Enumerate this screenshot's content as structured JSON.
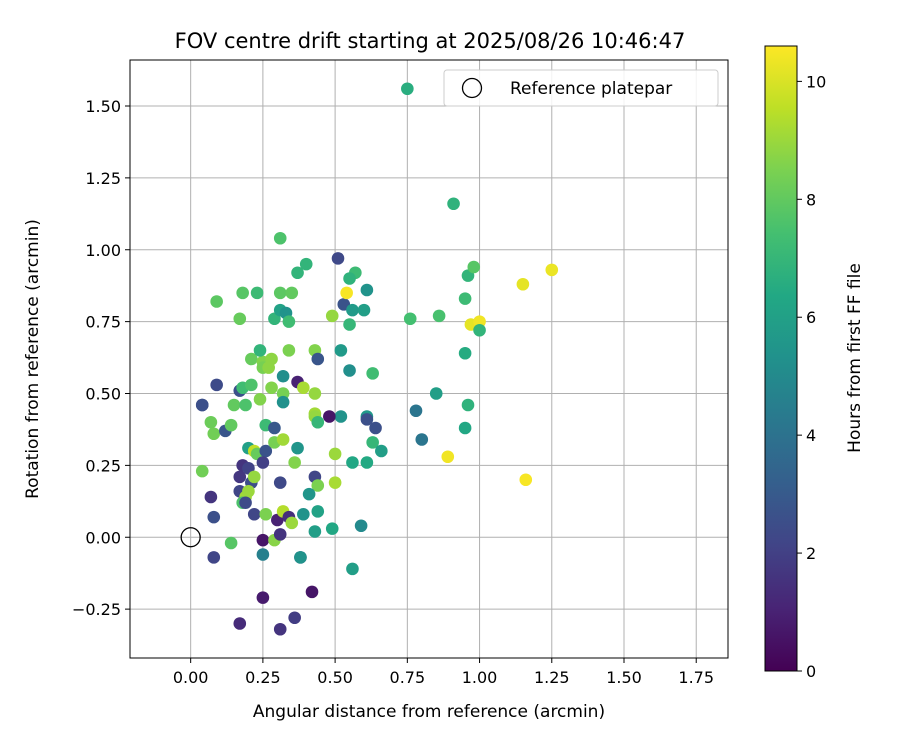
{
  "chart_data": {
    "type": "scatter",
    "title": "FOV centre drift starting at 2025/08/26 10:46:47",
    "xlabel": "Angular distance from reference (arcmin)",
    "ylabel": "Rotation from reference (arcmin)",
    "xlim": [
      -0.21,
      1.86
    ],
    "ylim": [
      -0.42,
      1.66
    ],
    "xticks": [
      0.0,
      0.25,
      0.5,
      0.75,
      1.0,
      1.25,
      1.5,
      1.75
    ],
    "xtick_labels": [
      "0.00",
      "0.25",
      "0.50",
      "0.75",
      "1.00",
      "1.25",
      "1.50",
      "1.75"
    ],
    "yticks": [
      -0.25,
      0.0,
      0.25,
      0.5,
      0.75,
      1.0,
      1.25,
      1.5
    ],
    "ytick_labels": [
      "−0.25",
      "0.00",
      "0.25",
      "0.50",
      "0.75",
      "1.00",
      "1.25",
      "1.50"
    ],
    "grid": true,
    "legend": {
      "position": "top-right",
      "label": "Reference platepar"
    },
    "reference_point": {
      "x": 0.0,
      "y": 0.0
    },
    "colorbar": {
      "label": "Hours from first FF file",
      "colormap": "viridis",
      "range": [
        0,
        10.6
      ],
      "ticks": [
        0,
        2,
        4,
        6,
        8,
        10
      ],
      "tick_labels": [
        "0",
        "2",
        "4",
        "6",
        "8",
        "10"
      ]
    },
    "points": [
      [
        0.75,
        1.56,
        6.6
      ],
      [
        0.91,
        1.16,
        6.8
      ],
      [
        0.31,
        1.04,
        7.6
      ],
      [
        0.4,
        0.95,
        6.9
      ],
      [
        0.37,
        0.92,
        6.9
      ],
      [
        0.57,
        0.92,
        7.2
      ],
      [
        0.55,
        0.9,
        6.8
      ],
      [
        0.96,
        0.91,
        6.9
      ],
      [
        0.98,
        0.94,
        7.8
      ],
      [
        1.25,
        0.93,
        10.3
      ],
      [
        0.51,
        0.97,
        2.3
      ],
      [
        0.53,
        0.81,
        2.7
      ],
      [
        0.56,
        0.79,
        5.7
      ],
      [
        0.6,
        0.79,
        5.9
      ],
      [
        0.61,
        0.86,
        5.4
      ],
      [
        0.54,
        0.85,
        10.5
      ],
      [
        1.15,
        0.88,
        10.2
      ],
      [
        0.09,
        0.82,
        7.9
      ],
      [
        0.18,
        0.85,
        7.8
      ],
      [
        0.23,
        0.85,
        7.2
      ],
      [
        0.31,
        0.85,
        7.9
      ],
      [
        0.35,
        0.85,
        8.0
      ],
      [
        0.17,
        0.76,
        8.1
      ],
      [
        0.29,
        0.76,
        6.9
      ],
      [
        0.31,
        0.79,
        6.1
      ],
      [
        0.33,
        0.78,
        5.4
      ],
      [
        0.34,
        0.75,
        7.3
      ],
      [
        0.49,
        0.77,
        8.9
      ],
      [
        0.55,
        0.74,
        7.0
      ],
      [
        0.76,
        0.76,
        7.4
      ],
      [
        0.86,
        0.77,
        7.5
      ],
      [
        0.95,
        0.83,
        7.2
      ],
      [
        0.97,
        0.74,
        10.2
      ],
      [
        1.0,
        0.75,
        10.4
      ],
      [
        1.0,
        0.72,
        6.9
      ],
      [
        0.21,
        0.62,
        8.1
      ],
      [
        0.25,
        0.61,
        8.6
      ],
      [
        0.28,
        0.62,
        8.8
      ],
      [
        0.24,
        0.65,
        6.9
      ],
      [
        0.34,
        0.65,
        8.5
      ],
      [
        0.43,
        0.65,
        8.6
      ],
      [
        0.44,
        0.62,
        2.8
      ],
      [
        0.52,
        0.65,
        5.7
      ],
      [
        0.63,
        0.57,
        7.3
      ],
      [
        0.55,
        0.58,
        5.2
      ],
      [
        0.95,
        0.64,
        6.5
      ],
      [
        0.09,
        0.53,
        2.4
      ],
      [
        0.17,
        0.51,
        2.6
      ],
      [
        0.18,
        0.52,
        7.3
      ],
      [
        0.21,
        0.53,
        7.6
      ],
      [
        0.25,
        0.59,
        8.4
      ],
      [
        0.27,
        0.59,
        8.8
      ],
      [
        0.28,
        0.52,
        8.6
      ],
      [
        0.32,
        0.56,
        5.2
      ],
      [
        0.32,
        0.5,
        8.4
      ],
      [
        0.37,
        0.54,
        1.0
      ],
      [
        0.39,
        0.52,
        9.2
      ],
      [
        0.43,
        0.5,
        8.9
      ],
      [
        0.04,
        0.46,
        2.3
      ],
      [
        0.04,
        0.46,
        2.6
      ],
      [
        0.15,
        0.46,
        8.0
      ],
      [
        0.19,
        0.46,
        7.6
      ],
      [
        0.24,
        0.48,
        8.6
      ],
      [
        0.32,
        0.47,
        5.3
      ],
      [
        0.52,
        0.42,
        5.4
      ],
      [
        0.43,
        0.43,
        9.1
      ],
      [
        0.43,
        0.42,
        8.9
      ],
      [
        0.48,
        0.42,
        0.6
      ],
      [
        0.61,
        0.42,
        5.6
      ],
      [
        0.61,
        0.41,
        2.6
      ],
      [
        0.44,
        0.4,
        7.0
      ],
      [
        0.78,
        0.44,
        4.1
      ],
      [
        0.85,
        0.5,
        5.9
      ],
      [
        0.96,
        0.46,
        6.8
      ],
      [
        0.07,
        0.4,
        8.2
      ],
      [
        0.08,
        0.36,
        8.3
      ],
      [
        0.12,
        0.37,
        2.8
      ],
      [
        0.14,
        0.39,
        8.0
      ],
      [
        0.2,
        0.31,
        6.0
      ],
      [
        0.22,
        0.3,
        9.6
      ],
      [
        0.23,
        0.29,
        8.1
      ],
      [
        0.26,
        0.39,
        7.2
      ],
      [
        0.26,
        0.3,
        2.7
      ],
      [
        0.29,
        0.38,
        2.9
      ],
      [
        0.29,
        0.33,
        8.4
      ],
      [
        0.32,
        0.34,
        9.1
      ],
      [
        0.37,
        0.31,
        5.5
      ],
      [
        0.64,
        0.38,
        2.6
      ],
      [
        0.63,
        0.33,
        7.0
      ],
      [
        0.66,
        0.3,
        5.9
      ],
      [
        0.8,
        0.34,
        4.1
      ],
      [
        0.89,
        0.28,
        10.4
      ],
      [
        0.95,
        0.38,
        6.3
      ],
      [
        0.5,
        0.29,
        9.0
      ],
      [
        0.04,
        0.23,
        8.3
      ],
      [
        0.17,
        0.21,
        1.7
      ],
      [
        0.18,
        0.25,
        1.6
      ],
      [
        0.2,
        0.24,
        2.1
      ],
      [
        0.21,
        0.19,
        2.5
      ],
      [
        0.22,
        0.21,
        8.9
      ],
      [
        0.25,
        0.26,
        2.0
      ],
      [
        0.31,
        0.19,
        2.3
      ],
      [
        0.36,
        0.26,
        8.6
      ],
      [
        0.43,
        0.21,
        2.2
      ],
      [
        0.44,
        0.18,
        8.5
      ],
      [
        0.41,
        0.15,
        5.5
      ],
      [
        0.56,
        0.26,
        6.3
      ],
      [
        0.61,
        0.26,
        6.4
      ],
      [
        1.16,
        0.2,
        10.5
      ],
      [
        0.5,
        0.19,
        9.2
      ],
      [
        0.07,
        0.14,
        1.6
      ],
      [
        0.17,
        0.16,
        2.2
      ],
      [
        0.19,
        0.14,
        9.1
      ],
      [
        0.2,
        0.16,
        9.0
      ],
      [
        0.18,
        0.12,
        7.6
      ],
      [
        0.19,
        0.12,
        2.4
      ],
      [
        0.22,
        0.08,
        2.2
      ],
      [
        0.26,
        0.08,
        8.5
      ],
      [
        0.3,
        0.06,
        1.0
      ],
      [
        0.32,
        0.09,
        9.4
      ],
      [
        0.34,
        0.07,
        1.4
      ],
      [
        0.35,
        0.05,
        9.0
      ],
      [
        0.39,
        0.08,
        5.4
      ],
      [
        0.44,
        0.09,
        6.1
      ],
      [
        0.08,
        0.07,
        2.6
      ],
      [
        0.43,
        0.02,
        5.9
      ],
      [
        0.49,
        0.03,
        6.3
      ],
      [
        0.59,
        0.04,
        5.0
      ],
      [
        0.14,
        -0.02,
        7.8
      ],
      [
        0.25,
        -0.01,
        0.6
      ],
      [
        0.29,
        -0.01,
        8.7
      ],
      [
        0.31,
        0.01,
        1.6
      ],
      [
        0.25,
        -0.06,
        4.6
      ],
      [
        0.08,
        -0.07,
        2.2
      ],
      [
        0.38,
        -0.07,
        2.8
      ],
      [
        0.38,
        -0.07,
        5.4
      ],
      [
        0.56,
        -0.11,
        5.9
      ],
      [
        0.25,
        -0.21,
        0.8
      ],
      [
        0.42,
        -0.19,
        0.6
      ],
      [
        0.17,
        -0.3,
        1.3
      ],
      [
        0.31,
        -0.32,
        1.6
      ],
      [
        0.36,
        -0.28,
        1.9
      ]
    ]
  }
}
